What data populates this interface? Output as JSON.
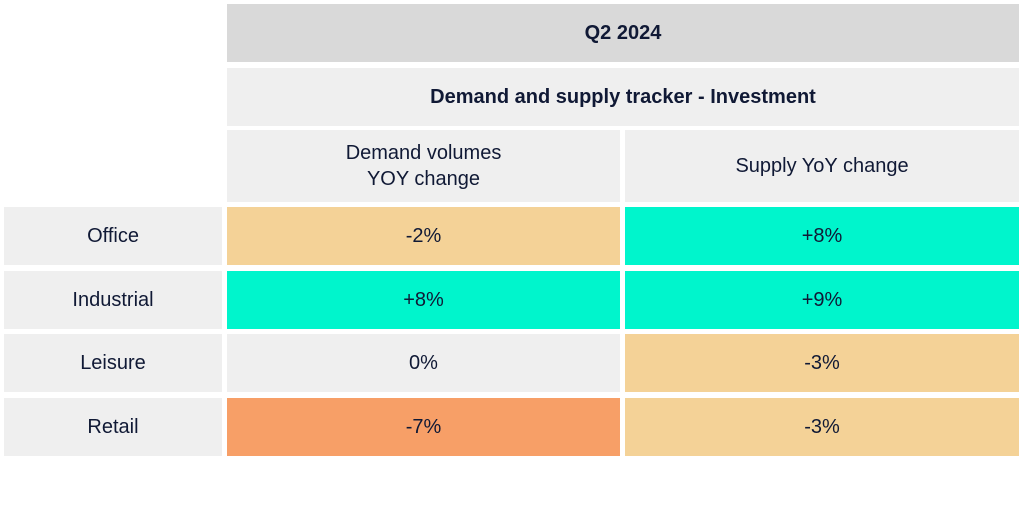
{
  "header": {
    "period": "Q2 2024",
    "title": "Demand and supply tracker - Investment"
  },
  "columns": [
    {
      "line1": "Demand volumes",
      "line2": "YOY change"
    },
    {
      "line1": "Supply YoY change",
      "line2": ""
    }
  ],
  "colors": {
    "header_bg": "#d9d9d9",
    "neutral": "#efefef",
    "positive": "#00f5cc",
    "mild_negative": "#f4d297",
    "strong_negative": "#f79f67"
  },
  "chart_data": {
    "type": "table",
    "title": "Demand and supply tracker - Investment",
    "period": "Q2 2024",
    "columns": [
      "Demand volumes YOY change",
      "Supply YoY change"
    ],
    "rows": [
      {
        "label": "Office",
        "values": [
          "-2%",
          "+8%"
        ],
        "colors": [
          "#f4d297",
          "#00f5cc"
        ]
      },
      {
        "label": "Industrial",
        "values": [
          "+8%",
          "+9%"
        ],
        "colors": [
          "#00f5cc",
          "#00f5cc"
        ]
      },
      {
        "label": "Leisure",
        "values": [
          "0%",
          "-3%"
        ],
        "colors": [
          "#efefef",
          "#f4d297"
        ]
      },
      {
        "label": "Retail",
        "values": [
          "-7%",
          "-3%"
        ],
        "colors": [
          "#f79f67",
          "#f4d297"
        ]
      }
    ]
  }
}
